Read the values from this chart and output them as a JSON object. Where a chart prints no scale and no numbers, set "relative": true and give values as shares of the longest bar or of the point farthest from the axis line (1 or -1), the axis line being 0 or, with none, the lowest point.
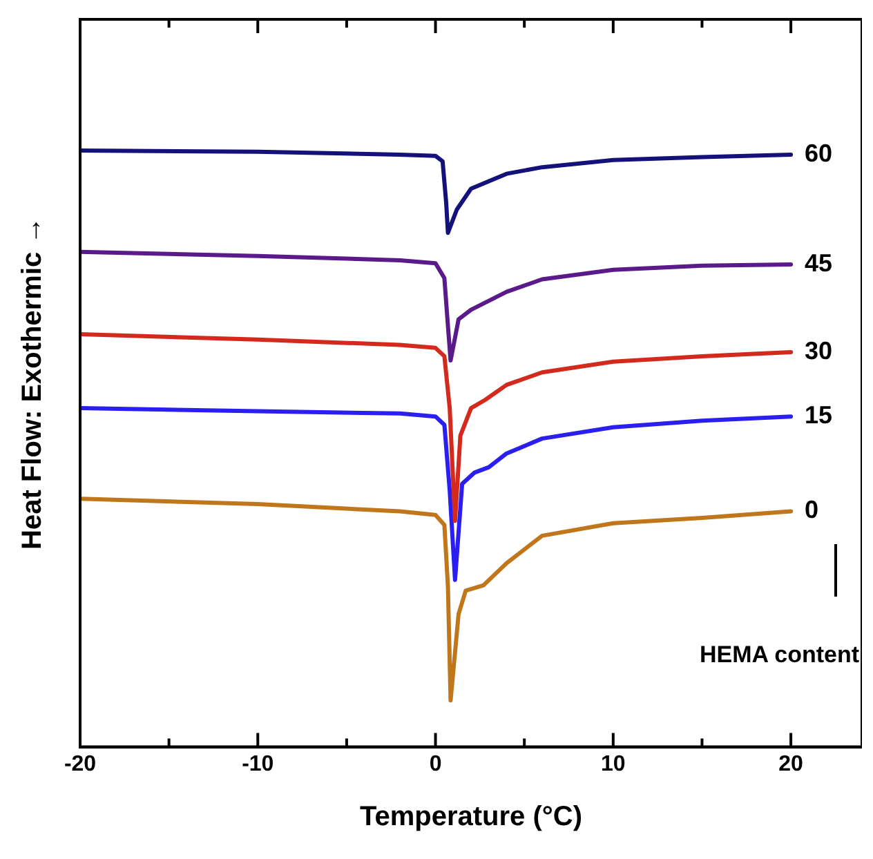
{
  "chart_data": {
    "type": "line",
    "xlabel": "Temperature (°C)",
    "ylabel": "Heat Flow: Exothermic →",
    "legend_title": "HEMA content",
    "relative": true,
    "legend": false,
    "grid": false,
    "marker": "none",
    "line_style": "solid",
    "xlim": [
      -20,
      24
    ],
    "xticks": [
      -20,
      {
        "value": -15,
        "label": null
      },
      -10,
      {
        "value": -5,
        "label": null
      },
      0,
      {
        "value": 5,
        "label": null
      },
      10,
      {
        "value": 15,
        "label": null
      },
      20
    ],
    "series": [
      {
        "name": "60",
        "color": "#14127a",
        "x": [
          -20,
          -10,
          -2,
          0,
          0.4,
          0.6,
          0.7,
          1.2,
          2,
          4,
          6,
          10,
          15,
          20
        ],
        "values": [
          1.0,
          0.998,
          0.993,
          0.991,
          0.982,
          0.913,
          0.862,
          0.901,
          0.936,
          0.961,
          0.972,
          0.984,
          0.989,
          0.993
        ]
      },
      {
        "name": "45",
        "color": "#5b1a8a",
        "x": [
          -20,
          -10,
          -2,
          0,
          0.5,
          0.7,
          0.85,
          1.3,
          2,
          4,
          6,
          10,
          15,
          20
        ],
        "values": [
          0.83,
          0.823,
          0.816,
          0.811,
          0.786,
          0.706,
          0.648,
          0.717,
          0.733,
          0.763,
          0.784,
          0.8,
          0.807,
          0.809
        ]
      },
      {
        "name": "30",
        "color": "#d42a1e",
        "x": [
          -20,
          -10,
          -2,
          0,
          0.5,
          0.8,
          1.1,
          1.4,
          2,
          2.8,
          4,
          6,
          10,
          15,
          20
        ],
        "values": [
          0.692,
          0.683,
          0.674,
          0.669,
          0.655,
          0.568,
          0.379,
          0.522,
          0.568,
          0.582,
          0.607,
          0.628,
          0.646,
          0.655,
          0.662
        ]
      },
      {
        "name": "15",
        "color": "#2a1ef0",
        "x": [
          -20,
          -10,
          -2,
          0,
          0.5,
          0.8,
          1.1,
          1.5,
          2.2,
          3,
          4,
          6,
          10,
          15,
          20
        ],
        "values": [
          0.568,
          0.563,
          0.559,
          0.554,
          0.54,
          0.43,
          0.28,
          0.441,
          0.46,
          0.469,
          0.492,
          0.517,
          0.536,
          0.547,
          0.554
        ]
      },
      {
        "name": "0",
        "color": "#c0771c",
        "x": [
          -20,
          -10,
          -2,
          0,
          0.5,
          0.7,
          0.85,
          1.3,
          1.7,
          2.7,
          4,
          6,
          10,
          15,
          20
        ],
        "values": [
          0.416,
          0.407,
          0.395,
          0.389,
          0.372,
          0.269,
          0.078,
          0.223,
          0.262,
          0.271,
          0.308,
          0.354,
          0.375,
          0.384,
          0.395
        ]
      }
    ]
  }
}
